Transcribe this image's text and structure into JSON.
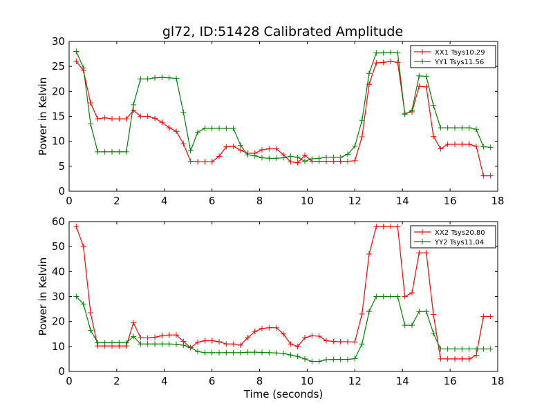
{
  "figure": {
    "title": "gl72, ID:51428 Calibrated Amplitude"
  },
  "chart_data": [
    {
      "type": "line",
      "title": "gl72, ID:51428 Calibrated Amplitude",
      "xlabel": "",
      "ylabel": "Power in Kelvin",
      "xlim": [
        0,
        18
      ],
      "ylim": [
        0,
        30
      ],
      "xticks": [
        0,
        2,
        4,
        6,
        8,
        10,
        12,
        14,
        16,
        18
      ],
      "yticks": [
        0,
        5,
        10,
        15,
        20,
        25,
        30
      ],
      "grid": false,
      "legend_position": "top-right",
      "series": [
        {
          "name": "XX1 Tsys10.29",
          "color": "#ff0000",
          "marker": "plus",
          "x": [
            0.3,
            0.6,
            0.9,
            1.2,
            1.5,
            1.8,
            2.1,
            2.4,
            2.7,
            3.0,
            3.3,
            3.6,
            3.9,
            4.2,
            4.5,
            4.8,
            5.1,
            5.4,
            5.7,
            6.0,
            6.3,
            6.6,
            6.9,
            7.2,
            7.5,
            7.8,
            8.1,
            8.4,
            8.7,
            9.0,
            9.3,
            9.6,
            9.9,
            10.2,
            10.5,
            10.8,
            11.1,
            11.4,
            11.7,
            12.0,
            12.3,
            12.6,
            12.9,
            13.2,
            13.5,
            13.8,
            14.1,
            14.4,
            14.7,
            15.0,
            15.3,
            15.6,
            15.9,
            16.2,
            16.5,
            16.8,
            17.1,
            17.4,
            17.7
          ],
          "values": [
            26.0,
            24.2,
            17.7,
            14.5,
            14.7,
            14.5,
            14.5,
            14.5,
            16.2,
            15.0,
            15.0,
            14.6,
            13.8,
            12.7,
            12.0,
            9.5,
            6.0,
            5.9,
            5.9,
            5.9,
            7.0,
            8.9,
            9.0,
            8.2,
            7.6,
            7.6,
            8.3,
            8.5,
            8.5,
            7.3,
            5.9,
            5.7,
            7.2,
            6.0,
            6.0,
            6.0,
            6.0,
            6.0,
            6.0,
            6.1,
            10.9,
            21.4,
            25.7,
            25.8,
            26.0,
            25.8,
            15.6,
            15.9,
            21.0,
            20.9,
            11.0,
            8.5,
            9.4,
            9.4,
            9.4,
            9.4,
            9.0,
            3.1,
            3.1
          ]
        },
        {
          "name": "YY1 Tsys11.56",
          "color": "#008000",
          "marker": "plus",
          "x": [
            0.3,
            0.6,
            0.9,
            1.2,
            1.5,
            1.8,
            2.1,
            2.4,
            2.7,
            3.0,
            3.3,
            3.6,
            3.9,
            4.2,
            4.5,
            4.8,
            5.1,
            5.4,
            5.7,
            6.0,
            6.3,
            6.6,
            6.9,
            7.2,
            7.5,
            7.8,
            8.1,
            8.4,
            8.7,
            9.0,
            9.3,
            9.6,
            9.9,
            10.2,
            10.5,
            10.8,
            11.1,
            11.4,
            11.7,
            12.0,
            12.3,
            12.6,
            12.9,
            13.2,
            13.5,
            13.8,
            14.1,
            14.4,
            14.7,
            15.0,
            15.3,
            15.6,
            15.9,
            16.2,
            16.5,
            16.8,
            17.1,
            17.4,
            17.7
          ],
          "values": [
            28.0,
            24.7,
            13.5,
            7.9,
            7.9,
            7.9,
            7.9,
            7.9,
            17.3,
            22.5,
            22.5,
            22.7,
            22.8,
            22.7,
            22.6,
            15.8,
            8.1,
            11.8,
            12.6,
            12.6,
            12.6,
            12.6,
            12.6,
            9.2,
            7.3,
            7.1,
            6.7,
            6.6,
            6.6,
            6.7,
            7.0,
            6.8,
            6.0,
            6.5,
            6.6,
            6.8,
            6.8,
            6.8,
            7.4,
            9.0,
            14.2,
            23.6,
            27.7,
            27.7,
            27.8,
            27.7,
            15.4,
            16.2,
            23.1,
            23.0,
            17.2,
            12.7,
            12.7,
            12.7,
            12.7,
            12.7,
            12.4,
            8.9,
            8.8
          ]
        }
      ]
    },
    {
      "type": "line",
      "title": "",
      "xlabel": "Time (seconds)",
      "ylabel": "Power in Kelvin",
      "xlim": [
        0,
        18
      ],
      "ylim": [
        0,
        60
      ],
      "xticks": [
        0,
        2,
        4,
        6,
        8,
        10,
        12,
        14,
        16,
        18
      ],
      "yticks": [
        0,
        10,
        20,
        30,
        40,
        50,
        60
      ],
      "grid": false,
      "legend_position": "top-right",
      "series": [
        {
          "name": "XX2 Tsys20.80",
          "color": "#ff0000",
          "marker": "plus",
          "x": [
            0.3,
            0.6,
            0.9,
            1.2,
            1.5,
            1.8,
            2.1,
            2.4,
            2.7,
            3.0,
            3.3,
            3.6,
            3.9,
            4.2,
            4.5,
            4.8,
            5.1,
            5.4,
            5.7,
            6.0,
            6.3,
            6.6,
            6.9,
            7.2,
            7.5,
            7.8,
            8.1,
            8.4,
            8.7,
            9.0,
            9.3,
            9.6,
            9.9,
            10.2,
            10.5,
            10.8,
            11.1,
            11.4,
            11.7,
            12.0,
            12.3,
            12.6,
            12.9,
            13.2,
            13.5,
            13.8,
            14.1,
            14.4,
            14.7,
            15.0,
            15.3,
            15.6,
            15.9,
            16.2,
            16.5,
            16.8,
            17.1,
            17.4,
            17.7
          ],
          "values": [
            58.0,
            50.0,
            23.5,
            10.2,
            10.2,
            10.2,
            10.2,
            10.2,
            19.5,
            13.5,
            13.4,
            13.7,
            14.3,
            14.6,
            14.6,
            12.0,
            9.5,
            11.7,
            12.3,
            12.3,
            11.9,
            11.0,
            11.0,
            10.5,
            13.5,
            16.0,
            17.2,
            17.5,
            17.5,
            15.0,
            11.0,
            10.0,
            13.5,
            14.3,
            14.1,
            12.3,
            12.0,
            11.9,
            11.9,
            11.8,
            23.0,
            47.0,
            58.0,
            58.0,
            58.0,
            58.0,
            30.0,
            31.5,
            47.5,
            47.5,
            22.8,
            5.0,
            5.0,
            5.0,
            5.0,
            5.0,
            6.5,
            22.0,
            22.0
          ]
        },
        {
          "name": "YY2 Tsys11.04",
          "color": "#008000",
          "marker": "plus",
          "x": [
            0.3,
            0.6,
            0.9,
            1.2,
            1.5,
            1.8,
            2.1,
            2.4,
            2.7,
            3.0,
            3.3,
            3.6,
            3.9,
            4.2,
            4.5,
            4.8,
            5.1,
            5.4,
            5.7,
            6.0,
            6.3,
            6.6,
            6.9,
            7.2,
            7.5,
            7.8,
            8.1,
            8.4,
            8.7,
            9.0,
            9.3,
            9.6,
            9.9,
            10.2,
            10.5,
            10.8,
            11.1,
            11.4,
            11.7,
            12.0,
            12.3,
            12.6,
            12.9,
            13.2,
            13.5,
            13.8,
            14.1,
            14.4,
            14.7,
            15.0,
            15.3,
            15.6,
            15.9,
            16.2,
            16.5,
            16.8,
            17.1,
            17.4,
            17.7
          ],
          "values": [
            30.0,
            27.0,
            16.5,
            11.5,
            11.5,
            11.5,
            11.5,
            11.5,
            14.0,
            11.0,
            11.0,
            11.0,
            11.0,
            11.0,
            10.9,
            10.5,
            9.5,
            8.0,
            7.5,
            7.5,
            7.5,
            7.5,
            7.5,
            7.5,
            7.7,
            7.7,
            7.6,
            7.5,
            7.4,
            7.2,
            6.6,
            6.0,
            5.0,
            4.0,
            4.0,
            4.7,
            4.8,
            4.8,
            4.8,
            5.1,
            11.0,
            24.0,
            30.0,
            30.0,
            30.0,
            30.0,
            18.5,
            18.5,
            24.0,
            24.0,
            15.3,
            9.0,
            9.0,
            9.0,
            9.0,
            9.0,
            9.0,
            9.0,
            9.0
          ]
        }
      ]
    }
  ]
}
